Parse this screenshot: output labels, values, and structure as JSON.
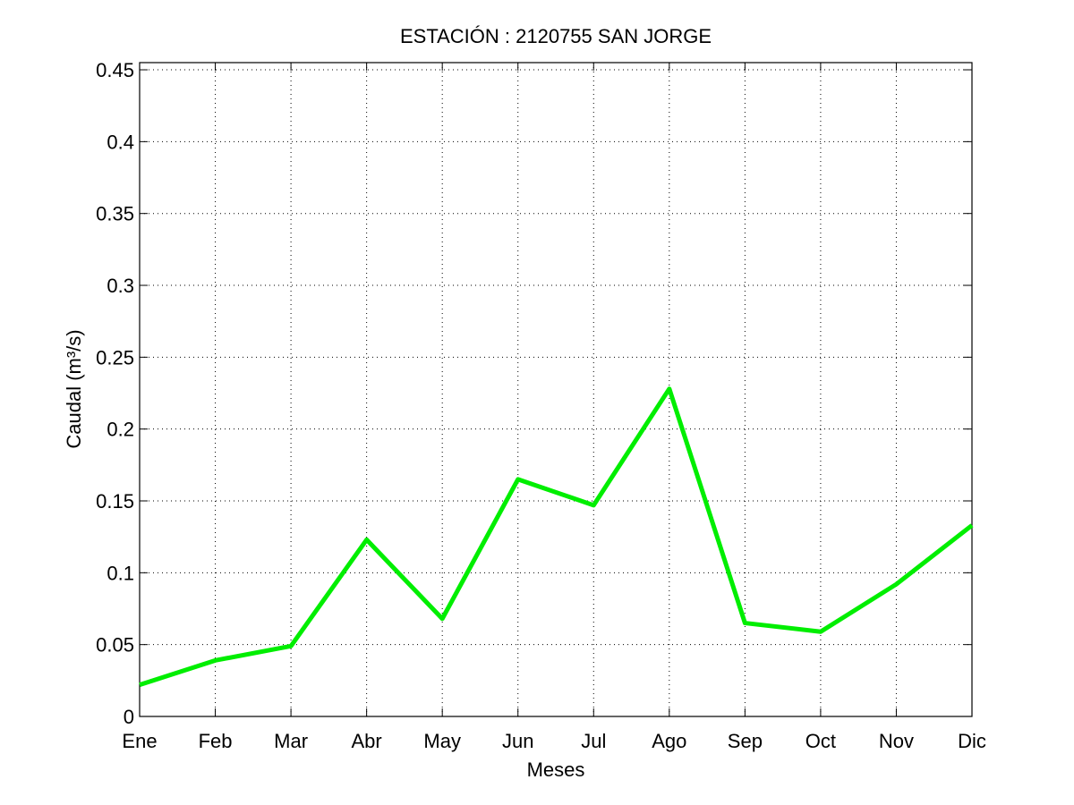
{
  "chart_data": {
    "type": "line",
    "title": "ESTACIÓN :  2120755  SAN JORGE",
    "xlabel": "Meses",
    "ylabel": "Caudal (m³/s)",
    "categories": [
      "Ene",
      "Feb",
      "Mar",
      "Abr",
      "May",
      "Jun",
      "Jul",
      "Ago",
      "Sep",
      "Oct",
      "Nov",
      "Dic"
    ],
    "series": [
      {
        "values": [
          0.022,
          0.039,
          0.049,
          0.123,
          0.068,
          0.165,
          0.147,
          0.228,
          0.065,
          0.059,
          0.092,
          0.133
        ],
        "color": "#00ee00"
      }
    ],
    "ylim": [
      0,
      0.455
    ],
    "yticks": [
      0,
      0.05,
      0.1,
      0.15,
      0.2,
      0.25,
      0.3,
      0.35,
      0.4,
      0.45
    ],
    "ytick_labels": [
      "0",
      "0.05",
      "0.1",
      "0.15",
      "0.2",
      "0.25",
      "0.3",
      "0.35",
      "0.4",
      "0.45"
    ],
    "grid": true
  }
}
